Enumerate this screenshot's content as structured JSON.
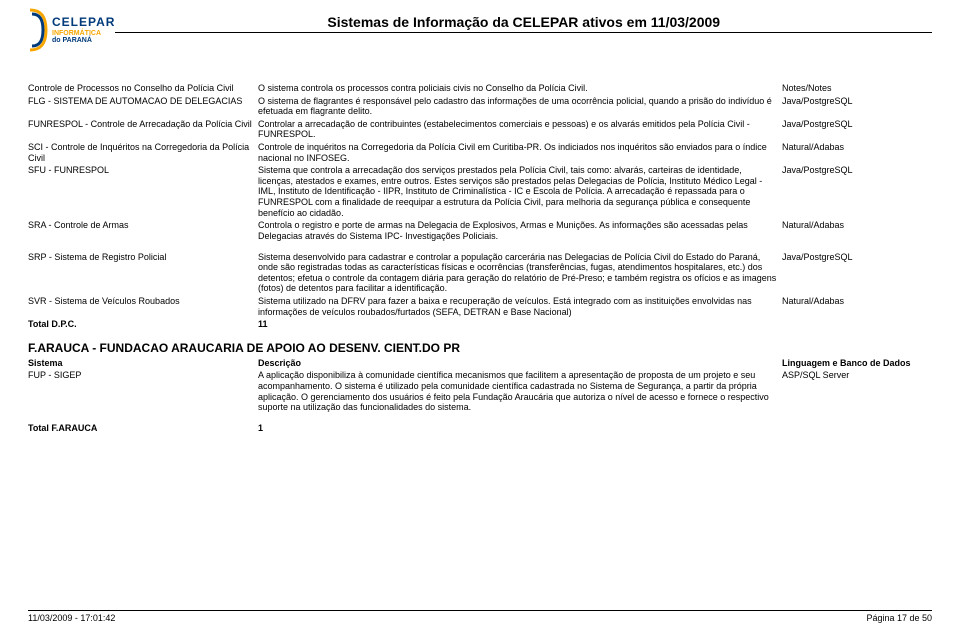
{
  "header": {
    "logo": {
      "brand": "CELEPAR",
      "sub1": "INFORMÁTICA",
      "sub2": "do PARANÁ"
    },
    "title": "Sistemas de Informação da CELEPAR ativos em 11/03/2009"
  },
  "rows1": [
    {
      "sistema": "Controle de Processos no Conselho da Polícia Civil",
      "descricao": "O sistema controla os processos contra policiais civis no Conselho da Polícia Civil.",
      "linguagem": "Notes/Notes"
    },
    {
      "sistema": "FLG - SISTEMA DE AUTOMACAO DE DELEGACIAS",
      "descricao": "O sistema de flagrantes é responsável pelo cadastro das informações de uma ocorrência policial, quando a prisão do indivíduo é efetuada em flagrante delito.",
      "linguagem": "Java/PostgreSQL"
    },
    {
      "sistema": "FUNRESPOL - Controle de Arrecadação da Polícia Civil",
      "descricao": "Controlar a arrecadação de contribuintes (estabelecimentos comerciais e pessoas) e os alvarás emitidos pela Polícia Civil - FUNRESPOL.",
      "linguagem": "Java/PostgreSQL"
    },
    {
      "sistema": "SCI - Controle de Inquéritos na Corregedoria da Polícia Civil",
      "descricao": "Controle de inquéritos na Corregedoria da Polícia Civil em Curitiba-PR. Os indiciados nos inquéritos são enviados para o índice nacional no INFOSEG.",
      "linguagem": "Natural/Adabas"
    },
    {
      "sistema": "SFU - FUNRESPOL",
      "descricao": "Sistema que controla a arrecadação dos serviços prestados pela Polícia Civil, tais como: alvarás, carteiras de identidade, licenças, atestados e exames, entre outros. Estes serviços são prestados pelas Delegacias de Polícia, Instituto Médico Legal - IML, Instituto de Identificação - IIPR, Instituto de Criminalística - IC e Escola de Polícia. A arrecadação é repassada para o FUNRESPOL com a finalidade de reequipar a estrutura da Polícia Civil, para melhoria da segurança pública e consequente benefício ao cidadão.",
      "linguagem": "Java/PostgreSQL"
    },
    {
      "sistema": "SRA - Controle de Armas",
      "descricao": "Controla o registro e porte de armas na Delegacia de Explosivos, Armas e Munições. As informações são acessadas pelas Delegacias através do Sistema IPC- Investigações Policiais.",
      "linguagem": "Natural/Adabas"
    }
  ],
  "rows1b": [
    {
      "sistema": "SRP - Sistema de Registro Policial",
      "descricao": "Sistema desenvolvido para cadastrar e controlar a população carcerária nas Delegacias de Polícia Civil do Estado do Paraná, onde são registradas todas as características físicas e ocorrências (transferências, fugas, atendimentos hospitalares, etc.) dos detentos; efetua o controle da contagem diária para geração do relatório de Pré-Preso; e também registra os ofícios e as imagens (fotos) de detentos para facilitar a identificação.",
      "linguagem": "Java/PostgreSQL"
    },
    {
      "sistema": "SVR - Sistema de Veículos Roubados",
      "descricao": "Sistema utilizado na DFRV para fazer a baixa e recuperação de veículos. Está integrado com as instituições envolvidas nas informações de veículos roubados/furtados (SEFA, DETRAN e Base Nacional)",
      "linguagem": "Natural/Adabas"
    }
  ],
  "total1": {
    "label": "Total D.P.C.",
    "value": "11"
  },
  "section2": {
    "title": "F.ARAUCA - FUNDACAO ARAUCARIA DE APOIO AO DESENV. CIENT.DO PR",
    "headers": {
      "sistema": "Sistema",
      "descricao": "Descrição",
      "linguagem": "Linguagem e Banco de Dados"
    }
  },
  "rows2": [
    {
      "sistema": "FUP - SIGEP",
      "descricao": "A aplicação disponibiliza à comunidade científica mecanismos que facilitem a apresentação de proposta de um projeto e seu acompanhamento. O sistema é utilizado pela comunidade científica cadastrada no Sistema de Segurança, a partir da própria aplicação. O gerenciamento dos usuários é feito pela Fundação Araucária que autoriza o nível de acesso e fornece o respectivo suporte na utilização das funcionalidades do sistema.",
      "linguagem": "ASP/SQL Server"
    }
  ],
  "total2": {
    "label": "Total F.ARAUCA",
    "value": "1"
  },
  "footer": {
    "left": "11/03/2009 - 17:01:42",
    "right": "Página 17 de  50"
  }
}
